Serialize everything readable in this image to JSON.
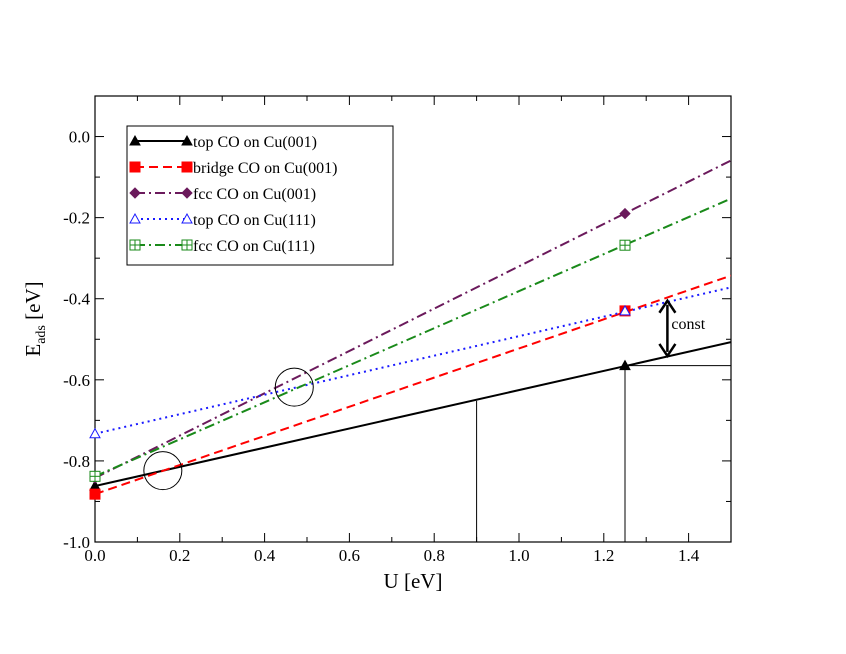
{
  "chart_data": {
    "type": "line",
    "xlabel": "U [eV]",
    "ylabel_main": "E",
    "ylabel_sub": "ads",
    "ylabel_unit": " [eV]",
    "xlim": [
      0.0,
      1.5
    ],
    "ylim": [
      -1.0,
      0.1
    ],
    "x_ticks": [
      0.0,
      0.2,
      0.4,
      0.6,
      0.8,
      1.0,
      1.2,
      1.4
    ],
    "x_tick_labels": [
      "0.0",
      "0.2",
      "0.4",
      "0.6",
      "0.8",
      "1.0",
      "1.2",
      "1.4"
    ],
    "y_ticks": [
      -1.0,
      -0.8,
      -0.6,
      -0.4,
      -0.2,
      0.0
    ],
    "y_tick_labels": [
      "-1.0",
      "-0.8",
      "-0.6",
      "-0.4",
      "-0.2",
      "0.0"
    ],
    "legend_position": "top-left",
    "series": [
      {
        "name": "top CO on Cu(001)",
        "color": "#000000",
        "line": "solid",
        "marker": "triangle-filled",
        "points": [
          [
            0.0,
            -0.862
          ],
          [
            1.25,
            -0.565
          ]
        ],
        "line_end": [
          1.5,
          -0.507
        ]
      },
      {
        "name": "bridge CO on Cu(001)",
        "color": "#ff0000",
        "line": "dashed",
        "marker": "square-filled",
        "points": [
          [
            0.0,
            -0.882
          ],
          [
            1.25,
            -0.43
          ]
        ],
        "line_end": [
          1.5,
          -0.343
        ]
      },
      {
        "name": "fcc CO on Cu(001)",
        "color": "#6b1a5c",
        "line": "dashdot",
        "marker": "diamond-filled",
        "points": [
          [
            0.0,
            -0.842
          ],
          [
            1.25,
            -0.19
          ]
        ],
        "line_end": [
          1.5,
          -0.059
        ]
      },
      {
        "name": "top CO on Cu(111)",
        "color": "#1a1aff",
        "line": "dotted",
        "marker": "triangle-open",
        "points": [
          [
            0.0,
            -0.733
          ],
          [
            1.25,
            -0.43
          ]
        ],
        "line_end": [
          1.5,
          -0.372
        ]
      },
      {
        "name": "fcc CO on Cu(111)",
        "color": "#1a8a1a",
        "line": "dashdot",
        "marker": "square-plus",
        "points": [
          [
            0.0,
            -0.838
          ],
          [
            1.25,
            -0.268
          ]
        ],
        "line_end": [
          1.5,
          -0.153
        ]
      }
    ],
    "circles": [
      {
        "name": "crossing-circle-low",
        "x": 0.16,
        "y": -0.824
      },
      {
        "name": "crossing-circle-high",
        "x": 0.47,
        "y": -0.618
      }
    ],
    "guide_lines": [
      {
        "name": "guide-vertical-0.9",
        "from": [
          0.9,
          -1.0
        ],
        "to": [
          0.9,
          -0.652
        ]
      },
      {
        "name": "guide-vertical-1.25",
        "from": [
          1.25,
          -1.0
        ],
        "to": [
          1.25,
          -0.565
        ]
      },
      {
        "name": "guide-horizontal-1.25",
        "from": [
          1.25,
          -0.565
        ],
        "to": [
          1.5,
          -0.565
        ]
      }
    ],
    "annotation": {
      "text": "const",
      "arrow_x": 1.35,
      "arrow_y_top": -0.405,
      "arrow_y_bottom": -0.541,
      "label_y": -0.462
    }
  }
}
